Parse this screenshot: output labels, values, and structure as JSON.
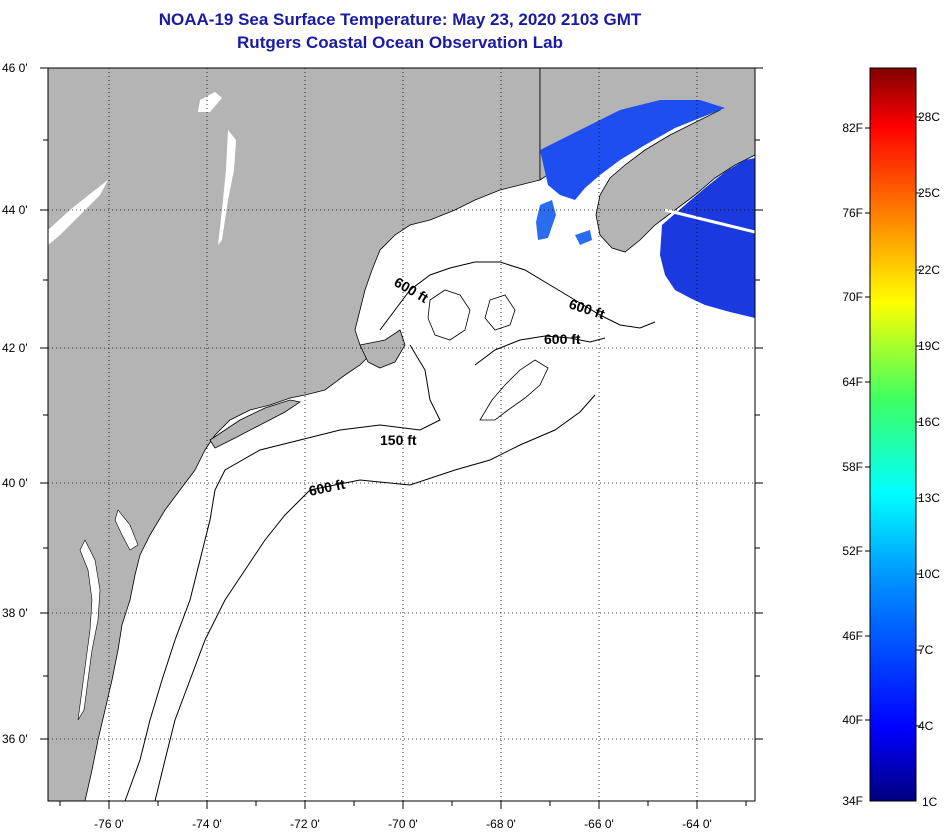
{
  "title": "NOAA-19 Sea Surface Temperature:  May 23, 2020 2103 GMT",
  "subtitle": "Rutgers Coastal Ocean Observation Lab",
  "lat_labels": [
    "46 0'",
    "44 0'",
    "42 0'",
    "40 0'",
    "38 0'",
    "36 0'"
  ],
  "lon_labels": [
    "-76 0'",
    "-74 0'",
    "-72 0'",
    "-70 0'",
    "-68 0'",
    "-66 0'",
    "-64 0'"
  ],
  "contour_labels": [
    "600 ft",
    "600 ft",
    "600 ft",
    "150 ft",
    "600 ft"
  ],
  "colorbar": {
    "fahrenheit": [
      "82F",
      "76F",
      "70F",
      "64F",
      "58F",
      "52F",
      "46F",
      "40F",
      "34F"
    ],
    "celsius": [
      "28C",
      "25C",
      "22C",
      "19C",
      "16C",
      "13C",
      "10C",
      "7C",
      "4C",
      "1C"
    ]
  },
  "colors": {
    "land": "#b4b4b4",
    "ocean_no_data": "#ffffff",
    "title": "#1a1aa6",
    "sst_cold": "#1430e6"
  }
}
